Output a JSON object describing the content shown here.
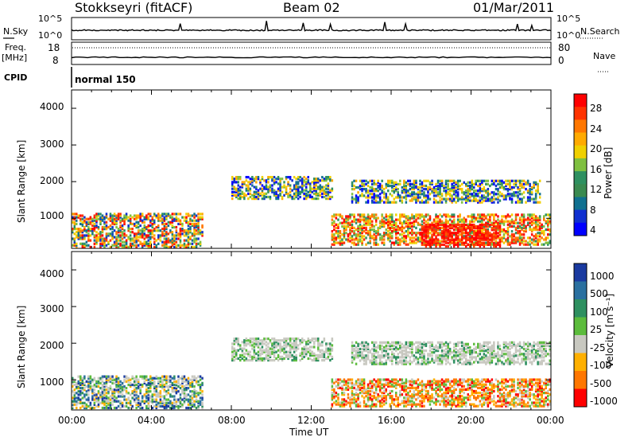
{
  "header": {
    "title": "Stokkseyri (fitACF)",
    "beam": "Beam 02",
    "date": "01/Mar/2011"
  },
  "strips": {
    "nsky_label": "N.Sky",
    "nsearch_label": "N.Search",
    "freq_label_1": "Freq.",
    "freq_label_2": "[MHz]",
    "nave_label": "Nave",
    "cpid_label": "CPID",
    "cpid_value": "normal 150",
    "noise_ticks": [
      "10^5",
      "10^0"
    ],
    "freq_ticks": [
      "18",
      "8"
    ],
    "nave_ticks": [
      "80",
      "0"
    ]
  },
  "chart_data": [
    {
      "type": "heatmap",
      "title": "Power",
      "ylabel": "Slant Range [km]",
      "ylim": [
        180,
        4500
      ],
      "y_ticks": [
        "4000",
        "3000",
        "2000",
        "1000"
      ],
      "x_ticks": [
        "00:00",
        "04:00",
        "08:00",
        "12:00",
        "16:00",
        "20:00",
        "00:00"
      ],
      "colorbar_label": "Power [dB]",
      "colorbar_ticks": [
        "28",
        "24",
        "20",
        "16",
        "12",
        "8",
        "4"
      ],
      "colorbar_colors": [
        "#ff0000",
        "#ff3300",
        "#ff7700",
        "#ffaa00",
        "#f0d000",
        "#7fc040",
        "#2e9060",
        "#3a8a50",
        "#107090",
        "#1030d0",
        "#0000ff"
      ],
      "regions": [
        {
          "x0": 0.0,
          "x1": 6.5,
          "y0": 180,
          "y1": 1100,
          "class": "mixed-high"
        },
        {
          "x0": 8.0,
          "x1": 13.0,
          "y0": 1500,
          "y1": 2100,
          "class": "mixed-low"
        },
        {
          "x0": 13.0,
          "x1": 24.0,
          "y0": 250,
          "y1": 1100,
          "class": "strong"
        },
        {
          "x0": 17.5,
          "x1": 21.5,
          "y0": 200,
          "y1": 800,
          "class": "very-strong"
        },
        {
          "x0": 14.0,
          "x1": 23.5,
          "y0": 1400,
          "y1": 2000,
          "class": "mixed-low"
        }
      ]
    },
    {
      "type": "heatmap",
      "title": "Velocity",
      "ylabel": "Slant Range [km]",
      "xlabel": "Time UT",
      "ylim": [
        180,
        4500
      ],
      "y_ticks": [
        "4000",
        "3000",
        "2000",
        "1000"
      ],
      "x_ticks": [
        "00:00",
        "04:00",
        "08:00",
        "12:00",
        "16:00",
        "20:00",
        "00:00"
      ],
      "colorbar_label": "Velocity [m s⁻¹]",
      "colorbar_ticks": [
        "1000",
        "500",
        "100",
        "25",
        "-25",
        "-100",
        "-500",
        "-1000"
      ],
      "colorbar_colors": [
        "#1a3aa0",
        "#2a70a0",
        "#2e9060",
        "#5cbc3c",
        "#c8c8c0",
        "#ffb000",
        "#ff7700",
        "#ff0000"
      ],
      "regions": [
        {
          "x0": 0.0,
          "x1": 6.5,
          "y0": 200,
          "y1": 1100,
          "class": "toward-slow"
        },
        {
          "x0": 8.0,
          "x1": 13.0,
          "y0": 1500,
          "y1": 2100,
          "class": "ground"
        },
        {
          "x0": 13.0,
          "x1": 24.0,
          "y0": 250,
          "y1": 1000,
          "class": "away"
        },
        {
          "x0": 14.0,
          "x1": 24.0,
          "y0": 1400,
          "y1": 2000,
          "class": "ground"
        }
      ]
    }
  ],
  "xlabel": "Time UT"
}
